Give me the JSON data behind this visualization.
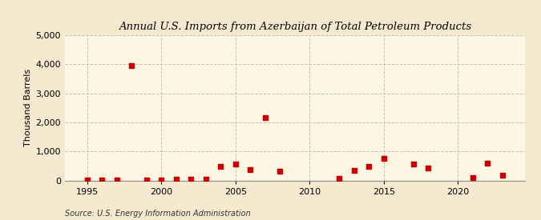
{
  "title": "Annual U.S. Imports from Azerbaijan of Total Petroleum Products",
  "ylabel": "Thousand Barrels",
  "source": "Source: U.S. Energy Information Administration",
  "background_color": "#f5ead0",
  "plot_background_color": "#fdf6e3",
  "grid_color": "#bbbbbb",
  "marker_color": "#cc0000",
  "xlim": [
    1993.5,
    2024.5
  ],
  "ylim": [
    0,
    5000
  ],
  "yticks": [
    0,
    1000,
    2000,
    3000,
    4000,
    5000
  ],
  "xticks": [
    1995,
    2000,
    2005,
    2010,
    2015,
    2020
  ],
  "data": {
    "1995": 5,
    "1996": 10,
    "1997": 12,
    "1998": 3960,
    "1999": 8,
    "2000": 5,
    "2001": 30,
    "2002": 45,
    "2003": 30,
    "2004": 470,
    "2005": 560,
    "2006": 360,
    "2007": 2150,
    "2008": 310,
    "2012": 70,
    "2013": 350,
    "2014": 480,
    "2015": 750,
    "2017": 560,
    "2018": 420,
    "2021": 100,
    "2022": 590,
    "2023": 185
  }
}
